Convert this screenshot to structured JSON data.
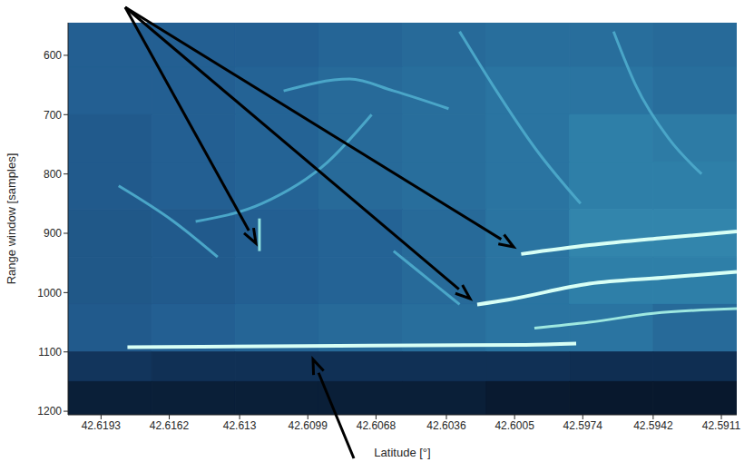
{
  "chart_data": {
    "type": "heatmap",
    "x_label": "Latitude [°]",
    "y_label": "Range window [samples]",
    "xlim": [
      42.6208,
      42.5904
    ],
    "xticks": [
      42.6193,
      42.6162,
      42.613,
      42.6099,
      42.6068,
      42.6036,
      42.6005,
      42.5974,
      42.5942,
      42.5911
    ],
    "ylim": [
      545,
      1206
    ],
    "yticks": [
      600,
      700,
      800,
      900,
      1000,
      1100,
      1200
    ],
    "x_edges": [
      42.6208,
      42.617,
      42.6132,
      42.6094,
      42.6056,
      42.6018,
      42.598,
      42.5942,
      42.5904
    ],
    "y_edges": [
      545,
      620,
      700,
      780,
      860,
      940,
      1020,
      1100,
      1150,
      1206
    ],
    "cells": [
      [
        0.35,
        0.35,
        0.35,
        0.38,
        0.4,
        0.42,
        0.42,
        0.4
      ],
      [
        0.35,
        0.35,
        0.37,
        0.4,
        0.42,
        0.45,
        0.45,
        0.42
      ],
      [
        0.33,
        0.35,
        0.37,
        0.4,
        0.42,
        0.45,
        0.5,
        0.48
      ],
      [
        0.33,
        0.35,
        0.37,
        0.4,
        0.42,
        0.45,
        0.5,
        0.5
      ],
      [
        0.32,
        0.33,
        0.35,
        0.37,
        0.4,
        0.45,
        0.52,
        0.52
      ],
      [
        0.32,
        0.33,
        0.35,
        0.37,
        0.4,
        0.45,
        0.5,
        0.5
      ],
      [
        0.33,
        0.35,
        0.38,
        0.4,
        0.42,
        0.45,
        0.45,
        0.4
      ],
      [
        0.18,
        0.16,
        0.16,
        0.16,
        0.16,
        0.16,
        0.15,
        0.15
      ],
      [
        0.08,
        0.08,
        0.08,
        0.08,
        0.08,
        0.06,
        0.05,
        0.05
      ]
    ],
    "series": [
      {
        "color": "#4aa6c8",
        "x": [
          42.611,
          42.608,
          42.606,
          42.6035
        ],
        "values": [
          660,
          640,
          660,
          690
        ]
      },
      {
        "color": "#4aa6c8",
        "x": [
          42.603,
          42.6015,
          42.5995,
          42.5975
        ],
        "values": [
          560,
          650,
          760,
          850
        ]
      },
      {
        "color": "#4aa6c8",
        "x": [
          42.615,
          42.612,
          42.609,
          42.607
        ],
        "values": [
          880,
          850,
          780,
          700
        ]
      },
      {
        "color": "#4aa6c8",
        "x": [
          42.596,
          42.595,
          42.5935,
          42.592
        ],
        "values": [
          560,
          650,
          740,
          800
        ]
      },
      {
        "color": "#4aa6c8",
        "x": [
          42.6185,
          42.616,
          42.614
        ],
        "values": [
          820,
          880,
          940
        ]
      },
      {
        "color": "#4aa6c8",
        "x": [
          42.606,
          42.604,
          42.603
        ],
        "values": [
          930,
          990,
          1020
        ]
      },
      {
        "color": "#d8fff5",
        "x": [
          42.6181,
          42.61,
          42.6,
          42.5977
        ],
        "values": [
          1092,
          1090,
          1088,
          1086
        ]
      },
      {
        "color": "#d8fff5",
        "x": [
          42.6002,
          42.5971,
          42.5938,
          42.5904
        ],
        "values": [
          935,
          920,
          908,
          897
        ]
      },
      {
        "color": "#d8fff5",
        "x": [
          42.6022,
          42.6008,
          42.5971,
          42.5938,
          42.5904
        ],
        "values": [
          1020,
          1012,
          985,
          975,
          965
        ]
      },
      {
        "color": "#9ee8e0",
        "x": [
          42.5996,
          42.5971,
          42.5942,
          42.5904
        ],
        "values": [
          1060,
          1050,
          1035,
          1027
        ]
      },
      {
        "color": "#8fdfe0",
        "x": [
          42.6121,
          42.6121
        ],
        "values": [
          875,
          930
        ]
      }
    ]
  }
}
